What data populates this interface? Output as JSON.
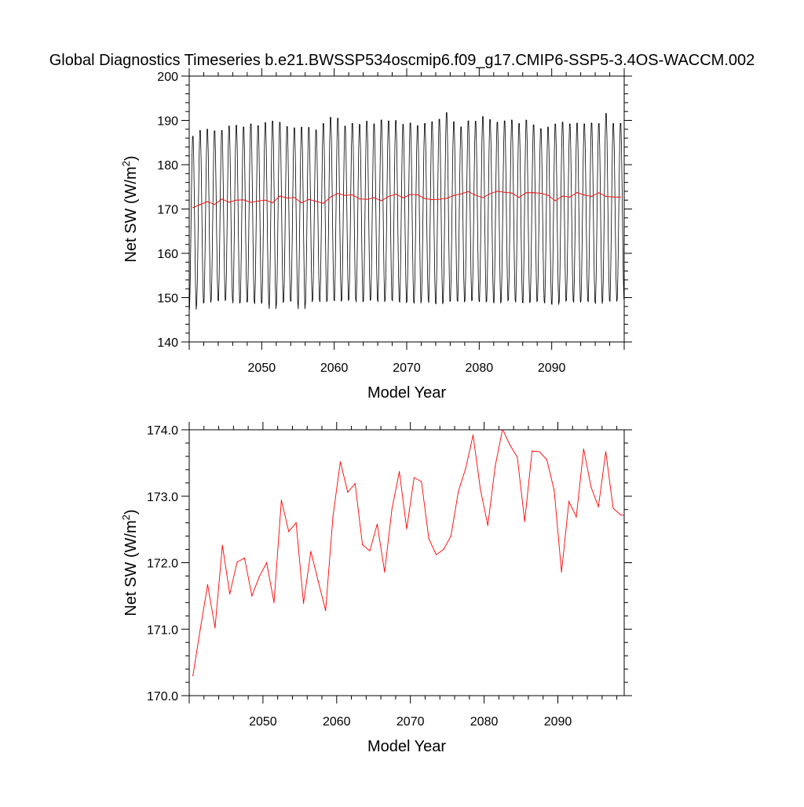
{
  "title": "Global Diagnostics Timeseries b.e21.BWSSP534oscmip6.f09_g17.CMIP6-SSP5-3.4OS-WACCM.002",
  "colors": {
    "monthly_line": "#000000",
    "annual_line": "#ff0000",
    "axis": "#000000"
  },
  "chart_data": [
    {
      "type": "line",
      "xlabel": "Model Year",
      "ylabel_main": "Net SW (W/m",
      "ylabel_sup": "2",
      "ylabel_close": ")",
      "xlim": [
        2040,
        2100
      ],
      "ylim": [
        140,
        200
      ],
      "xticks": [
        2050,
        2060,
        2070,
        2080,
        2090
      ],
      "xtick_labels": [
        "2050",
        "2060",
        "2070",
        "2080",
        "2090"
      ],
      "yticks": [
        140,
        150,
        160,
        170,
        180,
        190,
        200
      ],
      "ytick_labels": [
        "140",
        "150",
        "160",
        "170",
        "180",
        "190",
        "200"
      ],
      "grid": false,
      "series": [
        {
          "color": "#000000",
          "description_kind": "monthly",
          "annual_peaks": [
            187.1,
            188.4,
            188.7,
            188.3,
            188.4,
            189.4,
            189.6,
            189.2,
            189.9,
            189.5,
            190.2,
            190.6,
            190.3,
            189.3,
            189.0,
            189.2,
            189.1,
            188.5,
            190.0,
            191.4,
            191.2,
            189.4,
            190.0,
            189.8,
            190.5,
            189.9,
            190.8,
            190.6,
            190.7,
            189.8,
            190.1,
            189.5,
            190.0,
            190.4,
            191.0,
            192.5,
            190.4,
            189.2,
            190.6,
            190.5,
            191.6,
            190.9,
            190.3,
            190.6,
            190.8,
            190.0,
            190.8,
            189.7,
            188.8,
            189.2,
            189.9,
            190.3,
            189.9,
            190.1,
            189.9,
            190.1,
            190.0,
            192.3,
            190.0,
            190.0
          ],
          "annual_troughs": [
            146.6,
            148.1,
            148.2,
            148.8,
            148.6,
            149.0,
            148.0,
            148.3,
            148.4,
            147.9,
            148.4,
            146.7,
            148.1,
            148.6,
            148.5,
            146.7,
            148.3,
            148.9,
            148.3,
            148.8,
            148.5,
            148.7,
            148.9,
            148.3,
            148.6,
            148.9,
            148.3,
            148.8,
            148.6,
            148.2,
            148.4,
            148.0,
            148.9,
            148.1,
            147.8,
            148.3,
            148.7,
            148.4,
            148.6,
            148.7,
            148.3,
            148.5,
            148.0,
            148.6,
            148.8,
            148.2,
            148.1,
            148.4,
            148.6,
            148.0,
            147.7,
            148.5,
            148.7,
            148.2,
            148.6,
            148.4,
            147.9,
            148.7,
            148.4,
            149.0
          ]
        },
        {
          "color": "#ff0000",
          "description_kind": "annual",
          "x": [
            2040.5,
            2041.5,
            2042.5,
            2043.5,
            2044.5,
            2045.5,
            2046.5,
            2047.5,
            2048.5,
            2049.5,
            2050.5,
            2051.5,
            2052.5,
            2053.5,
            2054.5,
            2055.5,
            2056.5,
            2057.5,
            2058.5,
            2059.5,
            2060.5,
            2061.5,
            2062.5,
            2063.5,
            2064.5,
            2065.5,
            2066.5,
            2067.5,
            2068.5,
            2069.5,
            2070.5,
            2071.5,
            2072.5,
            2073.5,
            2074.5,
            2075.5,
            2076.5,
            2077.5,
            2078.5,
            2079.5,
            2080.5,
            2081.5,
            2082.5,
            2083.5,
            2084.5,
            2085.5,
            2086.5,
            2087.5,
            2088.5,
            2089.5,
            2090.5,
            2091.5,
            2092.5,
            2093.5,
            2094.5,
            2095.5,
            2096.5,
            2097.5,
            2098.5,
            2099.5
          ],
          "values": [
            170.3,
            171.0,
            171.67,
            171.02,
            172.26,
            171.53,
            172.01,
            172.07,
            171.5,
            171.79,
            172.0,
            171.4,
            172.94,
            172.47,
            172.6,
            171.39,
            172.17,
            171.72,
            171.28,
            172.7,
            173.52,
            173.06,
            173.19,
            172.27,
            172.18,
            172.58,
            171.86,
            172.81,
            173.37,
            172.51,
            173.28,
            173.22,
            172.36,
            172.12,
            172.2,
            172.4,
            173.07,
            173.42,
            173.92,
            173.1,
            172.56,
            173.45,
            174.01,
            173.77,
            173.59,
            172.62,
            173.68,
            173.67,
            173.55,
            173.09,
            171.86,
            172.92,
            172.69,
            173.71,
            173.14,
            172.84,
            173.67,
            172.82,
            172.72,
            172.7
          ]
        }
      ]
    },
    {
      "type": "line",
      "xlabel": "Model Year",
      "ylabel_main": "Net SW (W/m",
      "ylabel_sup": "2",
      "ylabel_close": ")",
      "xlim": [
        2040,
        2099
      ],
      "ylim": [
        170,
        174
      ],
      "xticks": [
        2050,
        2060,
        2070,
        2080,
        2090
      ],
      "xtick_labels": [
        "2050",
        "2060",
        "2070",
        "2080",
        "2090"
      ],
      "yticks": [
        170,
        171,
        172,
        173,
        174
      ],
      "ytick_labels": [
        "170.0",
        "171.0",
        "172.0",
        "173.0",
        "174.0"
      ],
      "grid": false,
      "series": [
        {
          "color": "#ff0000",
          "description_kind": "annual",
          "x": [
            2040.5,
            2041.5,
            2042.5,
            2043.5,
            2044.5,
            2045.5,
            2046.5,
            2047.5,
            2048.5,
            2049.5,
            2050.5,
            2051.5,
            2052.5,
            2053.5,
            2054.5,
            2055.5,
            2056.5,
            2057.5,
            2058.5,
            2059.5,
            2060.5,
            2061.5,
            2062.5,
            2063.5,
            2064.5,
            2065.5,
            2066.5,
            2067.5,
            2068.5,
            2069.5,
            2070.5,
            2071.5,
            2072.5,
            2073.5,
            2074.5,
            2075.5,
            2076.5,
            2077.5,
            2078.5,
            2079.5,
            2080.5,
            2081.5,
            2082.5,
            2083.5,
            2084.5,
            2085.5,
            2086.5,
            2087.5,
            2088.5,
            2089.5,
            2090.5,
            2091.5,
            2092.5,
            2093.5,
            2094.5,
            2095.5,
            2096.5,
            2097.5,
            2098.5,
            2099.5
          ],
          "values": [
            170.3,
            171.0,
            171.67,
            171.02,
            172.26,
            171.53,
            172.01,
            172.07,
            171.5,
            171.79,
            172.0,
            171.4,
            172.94,
            172.47,
            172.6,
            171.39,
            172.17,
            171.72,
            171.28,
            172.7,
            173.52,
            173.06,
            173.19,
            172.27,
            172.18,
            172.58,
            171.86,
            172.81,
            173.37,
            172.51,
            173.28,
            173.22,
            172.36,
            172.12,
            172.2,
            172.4,
            173.07,
            173.42,
            173.92,
            173.1,
            172.56,
            173.45,
            174.01,
            173.77,
            173.59,
            172.62,
            173.68,
            173.67,
            173.55,
            173.09,
            171.86,
            172.92,
            172.69,
            173.71,
            173.14,
            172.84,
            173.67,
            172.82,
            172.72,
            172.7
          ]
        }
      ]
    }
  ]
}
